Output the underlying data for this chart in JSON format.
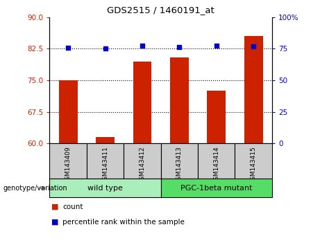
{
  "title": "GDS2515 / 1460191_at",
  "samples": [
    "GSM143409",
    "GSM143411",
    "GSM143412",
    "GSM143413",
    "GSM143414",
    "GSM143415"
  ],
  "bar_values": [
    75.0,
    61.5,
    79.5,
    80.5,
    72.5,
    85.5
  ],
  "percentile_values": [
    75.5,
    75.0,
    77.5,
    76.5,
    77.5,
    77.0
  ],
  "ylim_left": [
    60,
    90
  ],
  "ylim_right": [
    0,
    100
  ],
  "yticks_left": [
    60,
    67.5,
    75,
    82.5,
    90
  ],
  "yticks_right": [
    0,
    25,
    50,
    75,
    100
  ],
  "bar_color": "#cc2200",
  "dot_color": "#0000cc",
  "grid_color": "#000000",
  "groups": [
    {
      "label": "wild type",
      "samples": [
        0,
        1,
        2
      ],
      "color": "#aaeebb"
    },
    {
      "label": "PGC-1beta mutant",
      "samples": [
        3,
        4,
        5
      ],
      "color": "#55dd66"
    }
  ],
  "genotype_label": "genotype/variation",
  "legend_items": [
    {
      "color": "#cc2200",
      "label": "count"
    },
    {
      "color": "#0000cc",
      "label": "percentile rank within the sample"
    }
  ],
  "background_plot": "#ffffff",
  "background_sample": "#cccccc",
  "bar_width": 0.5
}
